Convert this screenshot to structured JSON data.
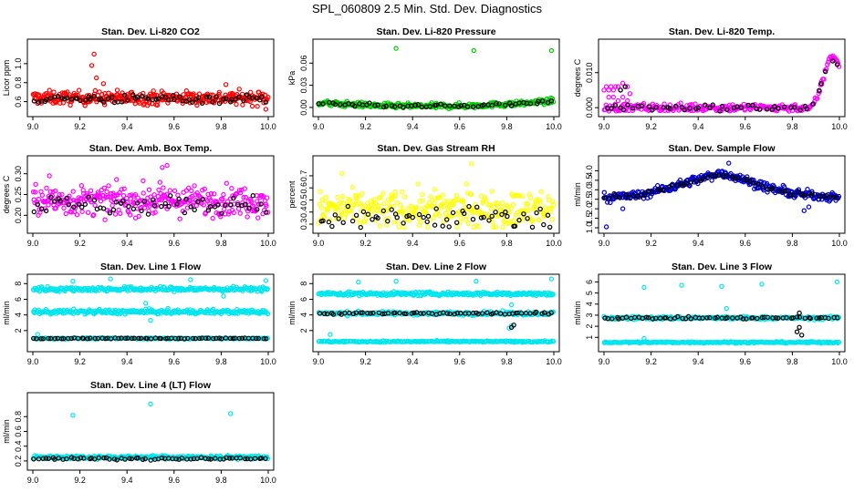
{
  "title": "SPL_060809  2.5 Min. Std. Dev. Diagnostics",
  "chart_data": [
    {
      "type": "scatter",
      "title": "Stan. Dev. Li-820 CO2",
      "ylabel": "Licor ppm",
      "xlim": [
        9.0,
        10.0
      ],
      "ylim": [
        0.5,
        1.2
      ],
      "xticks": [
        "9.0",
        "9.2",
        "9.4",
        "9.6",
        "9.8",
        "10.0"
      ],
      "yticks": [
        "0.6",
        "0.8",
        "1.0"
      ],
      "yvals": [
        0.6,
        0.8,
        1.0
      ],
      "series": [
        {
          "color": "#ff0000",
          "pattern": "band",
          "center": 0.64,
          "spread": 0.06,
          "count": 330,
          "outliers": [
            [
              9.26,
              1.1
            ],
            [
              9.25,
              0.98
            ],
            [
              9.27,
              0.85
            ],
            [
              9.3,
              0.79
            ],
            [
              9.99,
              0.52
            ],
            [
              9.82,
              0.78
            ]
          ]
        },
        {
          "color": "#000000",
          "pattern": "band",
          "center": 0.63,
          "spread": 0.04,
          "count": 70,
          "outliers": []
        }
      ]
    },
    {
      "type": "scatter",
      "title": "Stan. Dev. Li-820 Pressure",
      "ylabel": "kPa",
      "xlim": [
        9.0,
        10.0
      ],
      "ylim": [
        -0.005,
        0.085
      ],
      "xticks": [
        "9.0",
        "9.2",
        "9.4",
        "9.6",
        "9.8",
        "10.0"
      ],
      "yticks": [
        "0.00",
        "0.03",
        "0.06"
      ],
      "yvals": [
        0.0,
        0.03,
        0.06
      ],
      "series": [
        {
          "color": "#00cc00",
          "pattern": "curve",
          "curve": [
            [
              9.0,
              0.006
            ],
            [
              9.3,
              0.002
            ],
            [
              9.6,
              0.002
            ],
            [
              9.85,
              0.005
            ],
            [
              10.0,
              0.009
            ]
          ],
          "spread": 0.003,
          "count": 300,
          "outliers": [
            [
              9.33,
              0.08
            ],
            [
              9.66,
              0.077
            ],
            [
              9.99,
              0.077
            ]
          ]
        },
        {
          "color": "#000000",
          "pattern": "curve",
          "curve": [
            [
              9.0,
              0.006
            ],
            [
              9.3,
              0.002
            ],
            [
              9.6,
              0.002
            ],
            [
              9.85,
              0.005
            ],
            [
              10.0,
              0.008
            ]
          ],
          "spread": 0.002,
          "count": 60,
          "outliers": []
        }
      ]
    },
    {
      "type": "scatter",
      "title": "Stan. Dev. Li-820 Temp.",
      "ylabel": "degrees C",
      "xlim": [
        9.0,
        10.0
      ],
      "ylim": [
        -0.001,
        0.018
      ],
      "xticks": [
        "9.0",
        "9.2",
        "9.4",
        "9.6",
        "9.8",
        "10.0"
      ],
      "yticks": [
        "0.000",
        "0.010"
      ],
      "yvals": [
        0.0,
        0.01
      ],
      "series": [
        {
          "color": "#ff00ff",
          "pattern": "curve",
          "curve": [
            [
              9.0,
              0.0
            ],
            [
              9.88,
              0.0
            ],
            [
              9.9,
              0.002
            ],
            [
              9.93,
              0.008
            ],
            [
              9.96,
              0.015
            ],
            [
              9.99,
              0.014
            ],
            [
              10.0,
              0.011
            ]
          ],
          "spread": 0.001,
          "count": 240,
          "outliers": [
            [
              9.0,
              0.005
            ],
            [
              9.01,
              0.006
            ],
            [
              9.02,
              0.005
            ],
            [
              9.03,
              0.006
            ],
            [
              9.04,
              0.005
            ],
            [
              9.05,
              0.006
            ],
            [
              9.06,
              0.006
            ],
            [
              9.07,
              0.005
            ],
            [
              9.08,
              0.007
            ],
            [
              9.09,
              0.006
            ],
            [
              9.1,
              0.006
            ],
            [
              9.11,
              0.004
            ],
            [
              9.02,
              0.003
            ],
            [
              9.04,
              0.003
            ],
            [
              9.06,
              0.002
            ],
            [
              9.08,
              0.003
            ],
            [
              9.1,
              0.002
            ]
          ]
        },
        {
          "color": "#000000",
          "pattern": "curve",
          "curve": [
            [
              9.0,
              0.0
            ],
            [
              9.88,
              0.0
            ],
            [
              9.92,
              0.006
            ],
            [
              9.96,
              0.014
            ],
            [
              10.0,
              0.012
            ]
          ],
          "spread": 0.0008,
          "count": 50,
          "outliers": [
            [
              9.07,
              0.005
            ],
            [
              9.09,
              0.006
            ]
          ]
        }
      ]
    },
    {
      "type": "scatter",
      "title": "Stan. Dev. Amb. Box Temp.",
      "ylabel": "degrees C",
      "xlim": [
        9.0,
        10.0
      ],
      "ylim": [
        0.17,
        0.33
      ],
      "xticks": [
        "9.0",
        "9.2",
        "9.4",
        "9.6",
        "9.8",
        "10.0"
      ],
      "yticks": [
        "0.20",
        "0.25",
        "0.30"
      ],
      "yvals": [
        0.2,
        0.25,
        0.3
      ],
      "series": [
        {
          "color": "#ff00ff",
          "pattern": "band",
          "center": 0.235,
          "spread": 0.03,
          "count": 330,
          "outliers": [
            [
              9.55,
              0.315
            ],
            [
              9.57,
              0.32
            ],
            [
              9.07,
              0.295
            ]
          ]
        },
        {
          "color": "#000000",
          "pattern": "band",
          "center": 0.225,
          "spread": 0.02,
          "count": 60,
          "outliers": []
        }
      ]
    },
    {
      "type": "scatter",
      "title": "Stan. Dev. Gas Stream RH",
      "ylabel": "percent",
      "xlim": [
        9.0,
        10.0
      ],
      "ylim": [
        0.27,
        0.82
      ],
      "xticks": [
        "9.0",
        "9.2",
        "9.4",
        "9.6",
        "9.8",
        "10.0"
      ],
      "yticks": [
        "0.3",
        "0.4",
        "0.5",
        "0.6",
        "0.7"
      ],
      "yvals": [
        0.3,
        0.4,
        0.5,
        0.6,
        0.7
      ],
      "series": [
        {
          "color": "#ffff00",
          "pattern": "band",
          "center": 0.42,
          "spread": 0.13,
          "count": 330,
          "outliers": [
            [
              9.65,
              0.8
            ],
            [
              9.1,
              0.72
            ]
          ]
        },
        {
          "color": "#000000",
          "pattern": "band",
          "center": 0.36,
          "spread": 0.09,
          "count": 60,
          "outliers": []
        }
      ]
    },
    {
      "type": "scatter",
      "title": "Stan. Dev. Sample Flow",
      "ylabel": "ml/min",
      "xlim": [
        9.0,
        10.0
      ],
      "ylim": [
        1.0,
        4.5
      ],
      "xticks": [
        "9.0",
        "9.2",
        "9.4",
        "9.6",
        "9.8",
        "10.0"
      ],
      "yticks": [
        "1.0",
        "1.5",
        "2.0",
        "2.5",
        "3.0",
        "3.5",
        "4.0"
      ],
      "yvals": [
        1.0,
        1.5,
        2.0,
        2.5,
        3.0,
        3.5,
        4.0
      ],
      "series": [
        {
          "color": "#0000cc",
          "pattern": "curve",
          "curve": [
            [
              9.0,
              2.6
            ],
            [
              9.15,
              2.7
            ],
            [
              9.3,
              3.2
            ],
            [
              9.5,
              3.9
            ],
            [
              9.6,
              3.5
            ],
            [
              9.7,
              3.1
            ],
            [
              9.8,
              2.8
            ],
            [
              10.0,
              2.6
            ]
          ],
          "spread": 0.2,
          "count": 320,
          "outliers": [
            [
              9.01,
              1.05
            ],
            [
              9.08,
              2.0
            ],
            [
              9.85,
              1.9
            ],
            [
              9.87,
              2.1
            ],
            [
              9.53,
              4.4
            ]
          ]
        },
        {
          "color": "#000000",
          "pattern": "curve",
          "curve": [
            [
              9.0,
              2.6
            ],
            [
              9.15,
              2.7
            ],
            [
              9.3,
              3.2
            ],
            [
              9.5,
              3.8
            ],
            [
              9.6,
              3.5
            ],
            [
              9.7,
              3.1
            ],
            [
              9.8,
              2.8
            ],
            [
              10.0,
              2.6
            ]
          ],
          "spread": 0.1,
          "count": 60,
          "outliers": []
        }
      ]
    },
    {
      "type": "scatter",
      "title": "Stan. Dev. Line 1 Flow",
      "ylabel": "ml/min",
      "xlim": [
        9.0,
        10.0
      ],
      "ylim": [
        0.0,
        8.5
      ],
      "xticks": [
        "9.0",
        "9.2",
        "9.4",
        "9.6",
        "9.8",
        "10.0"
      ],
      "yticks": [
        "2",
        "4",
        "6",
        "8"
      ],
      "yvals": [
        2,
        4,
        6,
        8
      ],
      "series": [
        {
          "color": "#00e5ee",
          "pattern": "band",
          "center": 7.3,
          "spread": 0.25,
          "count": 260,
          "outliers": [
            [
              9.17,
              8.3
            ],
            [
              9.33,
              8.6
            ],
            [
              9.67,
              8.5
            ],
            [
              9.99,
              8.4
            ],
            [
              9.81,
              6.4
            ]
          ]
        },
        {
          "color": "#00e5ee",
          "pattern": "band",
          "center": 4.4,
          "spread": 0.25,
          "count": 260,
          "outliers": [
            [
              9.5,
              3.3
            ],
            [
              9.48,
              5.5
            ]
          ]
        },
        {
          "color": "#00e5ee",
          "pattern": "band",
          "center": 1.0,
          "spread": 0.08,
          "count": 200,
          "outliers": [
            [
              9.02,
              1.5
            ]
          ]
        },
        {
          "color": "#000000",
          "pattern": "band",
          "center": 1.0,
          "spread": 0.05,
          "count": 70,
          "outliers": []
        }
      ]
    },
    {
      "type": "scatter",
      "title": "Stan. Dev. Line 2 Flow",
      "ylabel": "ml/min",
      "xlim": [
        9.0,
        10.0
      ],
      "ylim": [
        0.0,
        8.5
      ],
      "xticks": [
        "9.0",
        "9.2",
        "9.4",
        "9.6",
        "9.8",
        "10.0"
      ],
      "yticks": [
        "2",
        "4",
        "6",
        "8"
      ],
      "yvals": [
        2,
        4,
        6,
        8
      ],
      "series": [
        {
          "color": "#00e5ee",
          "pattern": "band",
          "center": 6.7,
          "spread": 0.2,
          "count": 260,
          "outliers": [
            [
              9.17,
              8.2
            ],
            [
              9.33,
              8.3
            ],
            [
              9.67,
              8.3
            ],
            [
              9.99,
              8.6
            ],
            [
              9.82,
              5.3
            ]
          ]
        },
        {
          "color": "#00e5ee",
          "pattern": "band",
          "center": 4.2,
          "spread": 0.2,
          "count": 220,
          "outliers": [
            [
              9.81,
              2.3
            ],
            [
              9.82,
              2.6
            ]
          ]
        },
        {
          "color": "#00e5ee",
          "pattern": "band",
          "center": 0.6,
          "spread": 0.08,
          "count": 200,
          "outliers": [
            [
              9.05,
              1.5
            ]
          ]
        },
        {
          "color": "#000000",
          "pattern": "band",
          "center": 4.2,
          "spread": 0.12,
          "count": 65,
          "outliers": [
            [
              9.82,
              2.4
            ],
            [
              9.83,
              2.7
            ]
          ]
        }
      ]
    },
    {
      "type": "scatter",
      "title": "Stan. Dev. Line 3 Flow",
      "ylabel": "ml/min",
      "xlim": [
        9.0,
        10.0
      ],
      "ylim": [
        0.2,
        6.2
      ],
      "xticks": [
        "9.0",
        "9.2",
        "9.4",
        "9.6",
        "9.8",
        "10.0"
      ],
      "yticks": [
        "1",
        "2",
        "3",
        "4",
        "5",
        "6"
      ],
      "yvals": [
        1,
        2,
        3,
        4,
        5,
        6
      ],
      "series": [
        {
          "color": "#00e5ee",
          "pattern": "band",
          "center": 2.75,
          "spread": 0.12,
          "count": 260,
          "outliers": [
            [
              9.17,
              5.5
            ],
            [
              9.33,
              5.7
            ],
            [
              9.5,
              5.6
            ],
            [
              9.67,
              5.8
            ],
            [
              9.99,
              6.0
            ],
            [
              9.52,
              3.6
            ]
          ]
        },
        {
          "color": "#00e5ee",
          "pattern": "band",
          "center": 0.55,
          "spread": 0.06,
          "count": 220,
          "outliers": [
            [
              9.17,
              0.9
            ]
          ]
        },
        {
          "color": "#000000",
          "pattern": "band",
          "center": 2.75,
          "spread": 0.08,
          "count": 65,
          "outliers": [
            [
              9.82,
              1.5
            ],
            [
              9.83,
              1.9
            ],
            [
              9.84,
              1.2
            ],
            [
              9.83,
              3.2
            ]
          ]
        }
      ]
    },
    {
      "type": "scatter",
      "title": "Stan. Dev. Line 4 (LT) Flow",
      "ylabel": "ml/min",
      "xlim": [
        9.0,
        10.0
      ],
      "ylim": [
        0.15,
        1.05
      ],
      "xticks": [
        "9.0",
        "9.2",
        "9.4",
        "9.6",
        "9.8",
        "10.0"
      ],
      "yticks": [
        "0.2",
        "0.4",
        "0.6",
        "0.8"
      ],
      "yvals": [
        0.2,
        0.4,
        0.6,
        0.8
      ],
      "series": [
        {
          "color": "#00e5ee",
          "pattern": "band",
          "center": 0.25,
          "spread": 0.02,
          "count": 300,
          "outliers": [
            [
              9.17,
              0.82
            ],
            [
              9.5,
              0.97
            ],
            [
              9.84,
              0.84
            ]
          ]
        },
        {
          "color": "#000000",
          "pattern": "band",
          "center": 0.23,
          "spread": 0.015,
          "count": 65,
          "outliers": []
        }
      ]
    }
  ]
}
